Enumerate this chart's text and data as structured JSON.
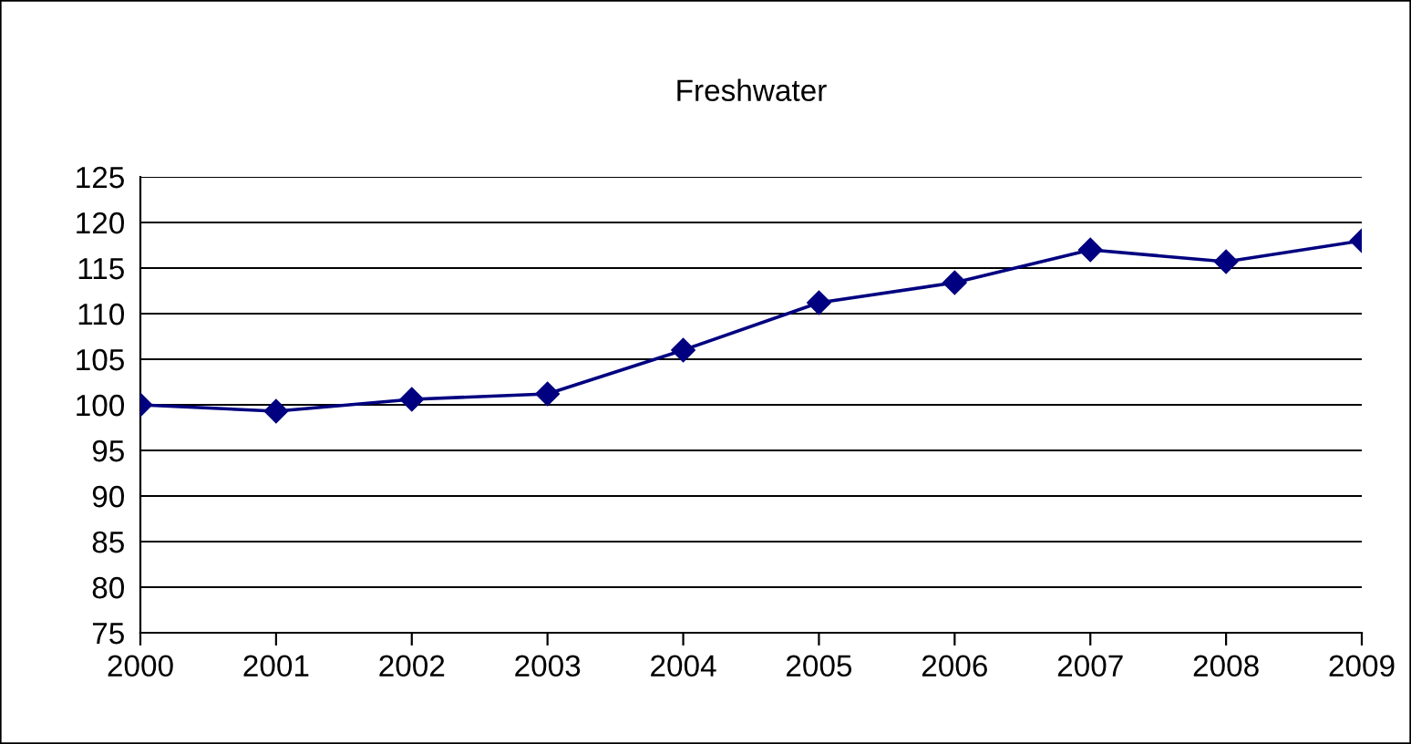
{
  "chart_data": {
    "type": "line",
    "title": "Freshwater",
    "categories": [
      "2000",
      "2001",
      "2002",
      "2003",
      "2004",
      "2005",
      "2006",
      "2007",
      "2008",
      "2009"
    ],
    "series": [
      {
        "color": "#000080",
        "values": [
          100,
          99.3,
          100.6,
          101.2,
          106,
          111.2,
          113.4,
          117,
          115.7,
          118
        ]
      }
    ],
    "ylim": [
      75,
      125
    ],
    "yticks": [
      75,
      80,
      85,
      90,
      95,
      100,
      105,
      110,
      115,
      120,
      125
    ],
    "grid": "y",
    "marker": "diamond",
    "line_style": "solid",
    "legend": false
  }
}
